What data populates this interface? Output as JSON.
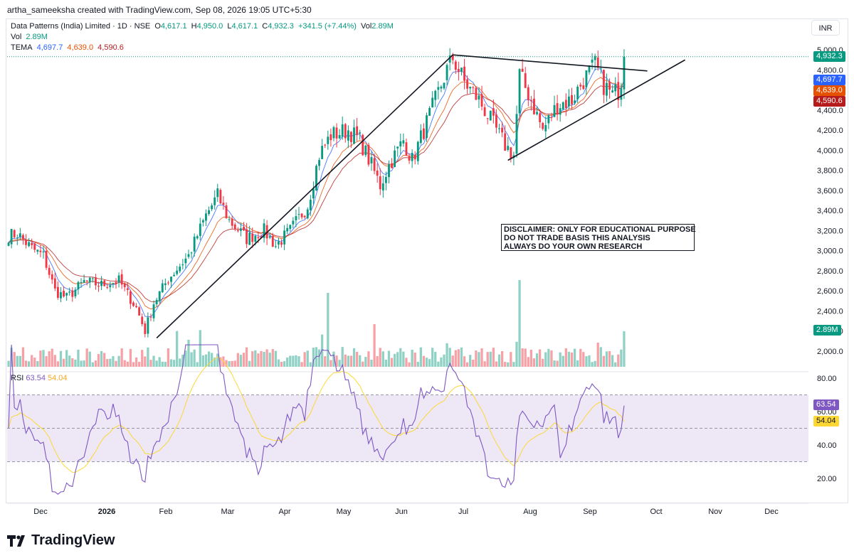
{
  "header": {
    "created_by": "artha_sameeksha created with TradingView.com, Sep 08, 2026 19:05 UTC+5:30"
  },
  "legend": {
    "title": "Data Patterns (India) Limited · 1D · NSE",
    "open_label": "O",
    "open": "4,617.1",
    "high_label": "H",
    "high": "4,950.0",
    "low_label": "L",
    "low": "4,617.1",
    "close_label": "C",
    "close": "4,932.3",
    "change": "+341.5 (+7.44%)",
    "vol_inline_label": "Vol",
    "vol_inline": "2.89M",
    "vol_label": "Vol",
    "vol": "2.89M",
    "tema_label": "TEMA",
    "tema1": "4,697.7",
    "tema2": "4,639.0",
    "tema3": "4,590.6"
  },
  "currency": "INR",
  "disclaimer": [
    "DISCLAIMER: ONLY FOR EDUCATIONAL PURPOSE",
    "DO NOT TRADE BASIS THIS ANALYSIS",
    "ALWAYS DO YOUR OWN RESEARCH"
  ],
  "rsi": {
    "label": "RSI",
    "value": "63.54",
    "ma": "54.04"
  },
  "price_tags": {
    "close": "4,932.3",
    "tema1": "4,697.7",
    "tema2": "4,639.0",
    "tema3": "4,590.6",
    "vol": "2.89M",
    "rsi": "63.54",
    "rsi_ma": "54.04"
  },
  "brand": "TradingView",
  "colors": {
    "up": "#089981",
    "down": "#f23645",
    "tema1": "#2962ff",
    "tema2": "#e65100",
    "tema3": "#b71c1c",
    "rsi": "#7e57c2",
    "rsi_ma": "#fdd835",
    "rsi_band": "#ede7f6",
    "vol_up": "#8fd1c4",
    "vol_down": "#f7a1a6"
  },
  "chart_data": {
    "type": "candlestick",
    "symbol": "Data Patterns (India) Limited",
    "interval": "1D",
    "exchange": "NSE",
    "price_axis": {
      "ticks": [
        2000,
        2200,
        2400,
        2600,
        2800,
        3000,
        3200,
        3400,
        3600,
        3800,
        4000,
        4200,
        4400,
        4600,
        4800,
        5000
      ],
      "tick_labels": [
        "2,000.0",
        "2,200.0",
        "2,400.0",
        "2,600.0",
        "2,800.0",
        "3,000.0",
        "3,200.0",
        "3,400.0",
        "3,600.0",
        "3,800.0",
        "4,000.0",
        "4,200.0",
        "4,400.0",
        "4,600.0",
        "4,800.0",
        "5,000.0"
      ],
      "range": [
        1900,
        5100
      ]
    },
    "time_axis": {
      "labels": [
        "Dec",
        "2026",
        "Feb",
        "Mar",
        "Apr",
        "May",
        "Jun",
        "Jul",
        "Aug",
        "Sep",
        "Oct",
        "Nov",
        "Dec"
      ]
    },
    "rsi_axis": {
      "ticks": [
        20,
        40,
        60,
        80
      ],
      "tick_labels": [
        "20.00",
        "40.00",
        "60.00",
        "80.00"
      ],
      "bands": [
        30,
        70
      ]
    },
    "last": {
      "open": 4617.1,
      "high": 4950.0,
      "low": 4617.1,
      "close": 4932.3,
      "volume": "2.89M",
      "rsi": 63.54,
      "rsi_ma": 54.04,
      "tema": [
        4697.7,
        4639.0,
        4590.6
      ]
    },
    "anchor_closes": [
      {
        "day": 0,
        "close": 3150
      },
      {
        "day": 3,
        "close": 3170
      },
      {
        "day": 8,
        "close": 3020
      },
      {
        "day": 12,
        "close": 2950
      },
      {
        "day": 16,
        "close": 2600
      },
      {
        "day": 20,
        "close": 2530
      },
      {
        "day": 26,
        "close": 2690
      },
      {
        "day": 32,
        "close": 2660
      },
      {
        "day": 38,
        "close": 2700
      },
      {
        "day": 44,
        "close": 2430
      },
      {
        "day": 47,
        "close": 2200
      },
      {
        "day": 50,
        "close": 2480
      },
      {
        "day": 55,
        "close": 2720
      },
      {
        "day": 62,
        "close": 2950
      },
      {
        "day": 68,
        "close": 3350
      },
      {
        "day": 72,
        "close": 3550
      },
      {
        "day": 76,
        "close": 3300
      },
      {
        "day": 82,
        "close": 3120
      },
      {
        "day": 88,
        "close": 3200
      },
      {
        "day": 92,
        "close": 3050
      },
      {
        "day": 97,
        "close": 3200
      },
      {
        "day": 103,
        "close": 3450
      },
      {
        "day": 107,
        "close": 3950
      },
      {
        "day": 111,
        "close": 4150
      },
      {
        "day": 117,
        "close": 4200
      },
      {
        "day": 121,
        "close": 4100
      },
      {
        "day": 125,
        "close": 3850
      },
      {
        "day": 128,
        "close": 3650
      },
      {
        "day": 131,
        "close": 3850
      },
      {
        "day": 136,
        "close": 4100
      },
      {
        "day": 139,
        "close": 3900
      },
      {
        "day": 143,
        "close": 4200
      },
      {
        "day": 147,
        "close": 4500
      },
      {
        "day": 151,
        "close": 4800
      },
      {
        "day": 153,
        "close": 4920
      },
      {
        "day": 157,
        "close": 4680
      },
      {
        "day": 162,
        "close": 4500
      },
      {
        "day": 167,
        "close": 4250
      },
      {
        "day": 171,
        "close": 4050
      },
      {
        "day": 174,
        "close": 3950
      },
      {
        "day": 176,
        "close": 4750
      },
      {
        "day": 180,
        "close": 4500
      },
      {
        "day": 184,
        "close": 4200
      },
      {
        "day": 189,
        "close": 4450
      },
      {
        "day": 194,
        "close": 4500
      },
      {
        "day": 198,
        "close": 4700
      },
      {
        "day": 202,
        "close": 4850
      },
      {
        "day": 205,
        "close": 4650
      },
      {
        "day": 208,
        "close": 4550
      },
      {
        "day": 211,
        "close": 4617
      },
      {
        "day": 212,
        "close": 4932
      }
    ],
    "trendlines": [
      {
        "name": "rally-line",
        "from": {
          "day": 51,
          "price": 2130
        },
        "to": {
          "day": 153,
          "price": 4950
        }
      },
      {
        "name": "triangle-top",
        "from": {
          "day": 153,
          "price": 4950
        },
        "to": {
          "day": 220,
          "price": 4790
        }
      },
      {
        "name": "triangle-bottom",
        "from": {
          "day": 172,
          "price": 3900
        },
        "to": {
          "day": 233,
          "price": 4900
        }
      }
    ]
  }
}
